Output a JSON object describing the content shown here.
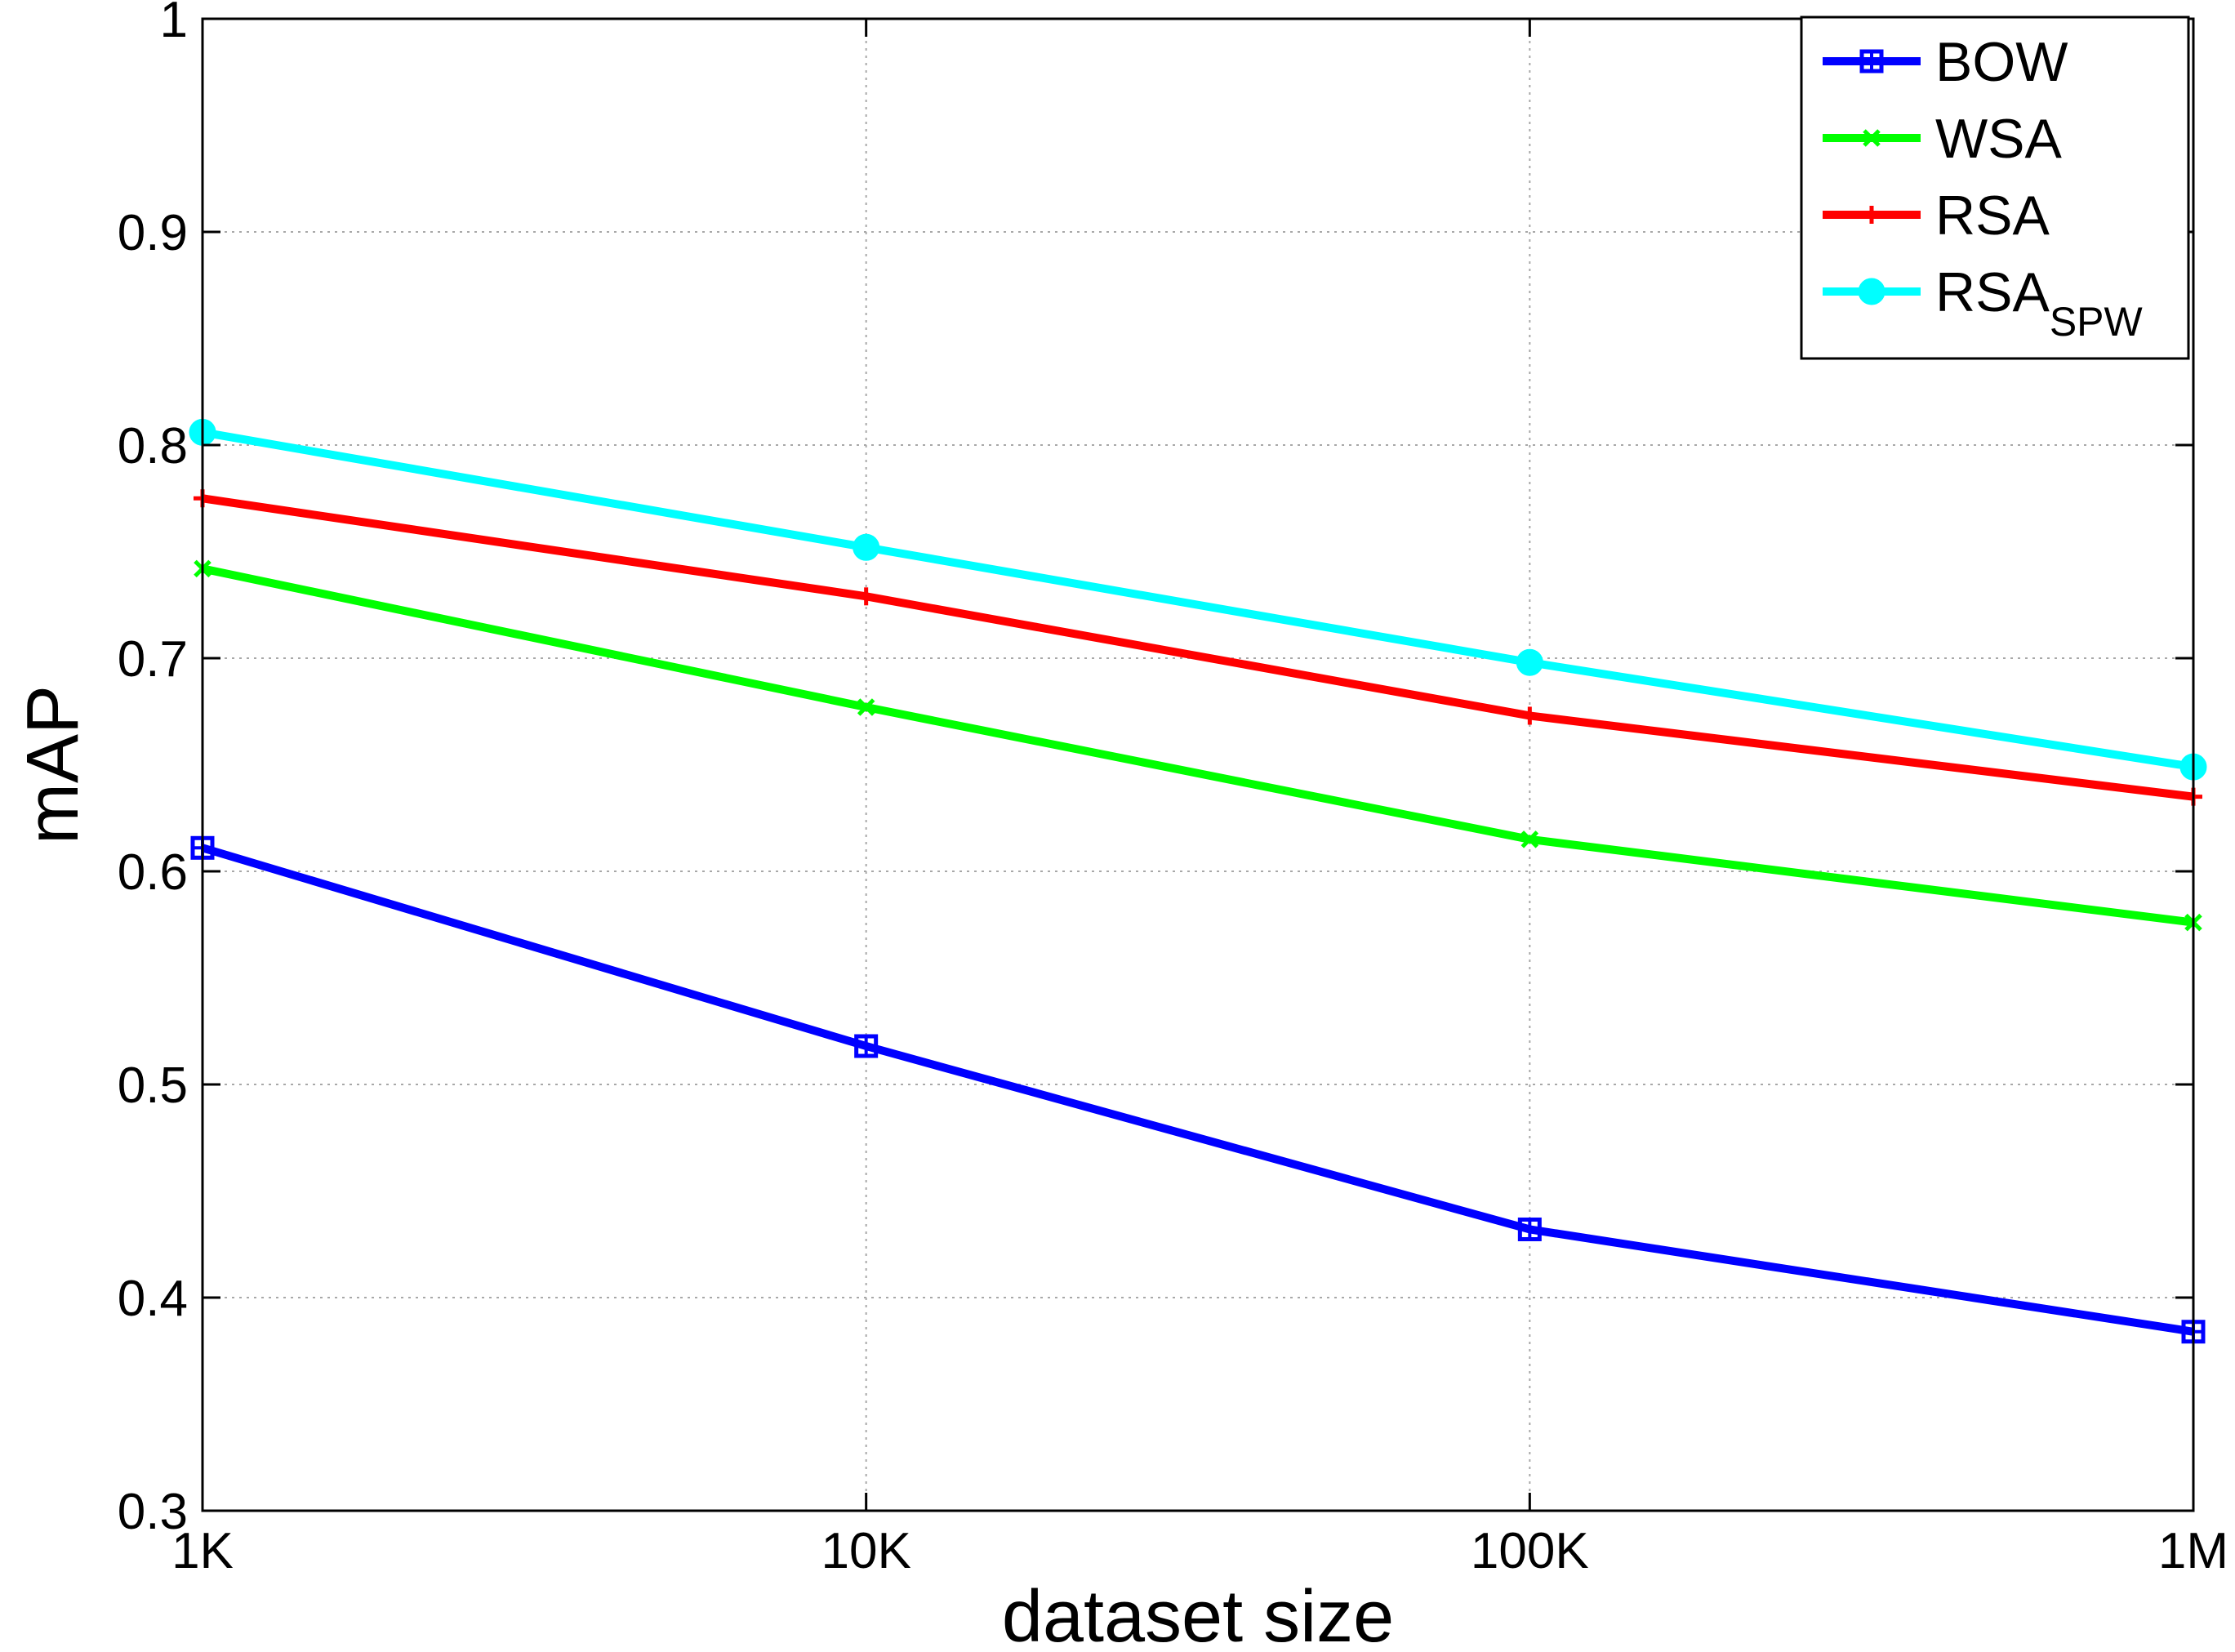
{
  "chart_data": {
    "type": "line",
    "title": "",
    "xlabel": "dataset size",
    "ylabel": "mAP",
    "x_scale": "log",
    "x": [
      "1K",
      "10K",
      "100K",
      "1M"
    ],
    "xlim": [
      "1K",
      "1M"
    ],
    "ylim": [
      0.3,
      1.0
    ],
    "yticks": [
      "0.3",
      "0.4",
      "0.5",
      "0.6",
      "0.7",
      "0.8",
      "0.9",
      "1"
    ],
    "grid": true,
    "legend_position": "top-right",
    "series": [
      {
        "name": "BOW",
        "color": "#0000ff",
        "marker": "square-plus",
        "values": [
          0.611,
          0.518,
          0.432,
          0.384
        ]
      },
      {
        "name": "WSA",
        "color": "#00ff00",
        "marker": "x",
        "values": [
          0.742,
          0.677,
          0.615,
          0.576
        ]
      },
      {
        "name": "RSA",
        "color": "#ff0000",
        "marker": "plus",
        "values": [
          0.775,
          0.729,
          0.673,
          0.635
        ]
      },
      {
        "name": "RSA",
        "name_subscript": "SPW",
        "color": "#00ffff",
        "marker": "circle",
        "values": [
          0.806,
          0.752,
          0.698,
          0.649
        ]
      }
    ]
  }
}
